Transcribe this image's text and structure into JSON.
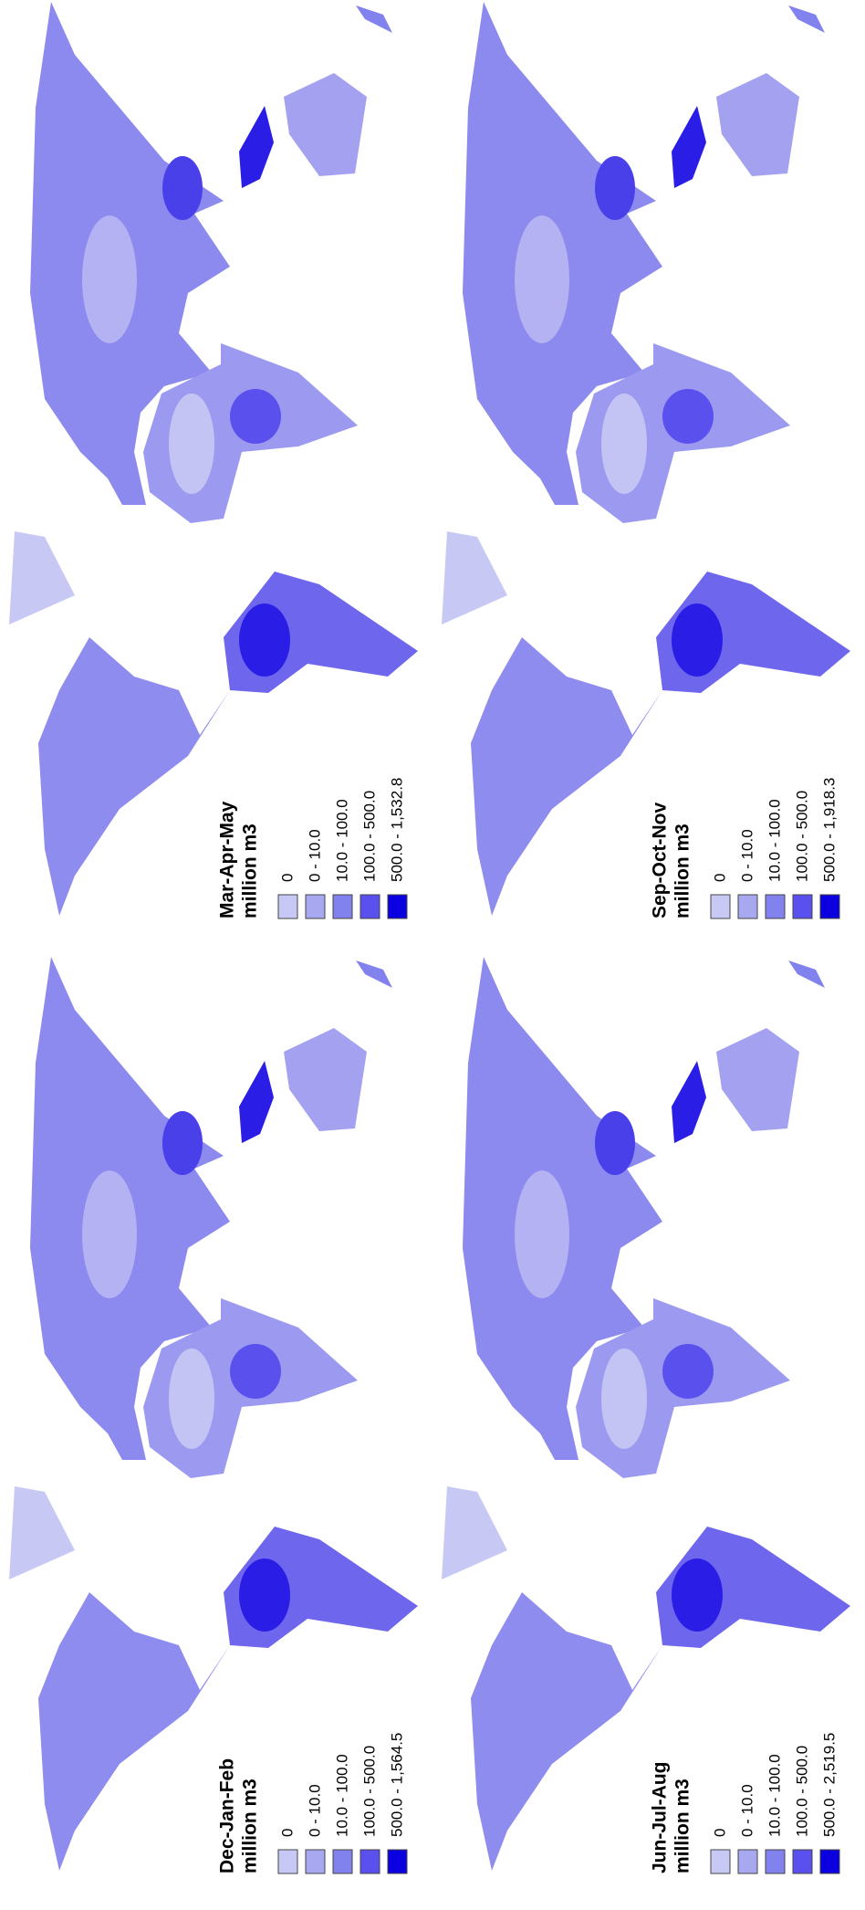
{
  "panels": [
    {
      "title": "Dec-Jan-Feb",
      "unit": "million m3",
      "legend": [
        {
          "label": "0",
          "color": "#c8c8f5"
        },
        {
          "label": "0 - 10.0",
          "color": "#a8a8f0"
        },
        {
          "label": "10.0 - 100.0",
          "color": "#8282ee"
        },
        {
          "label": "100.0 - 500.0",
          "color": "#5a50ee"
        },
        {
          "label": "500.0 - 1,564.5",
          "color": "#0a00e0"
        }
      ]
    },
    {
      "title": "Mar-Apr-May",
      "unit": "million m3",
      "legend": [
        {
          "label": "0",
          "color": "#c8c8f5"
        },
        {
          "label": "0 - 10.0",
          "color": "#a8a8f0"
        },
        {
          "label": "10.0 - 100.0",
          "color": "#8282ee"
        },
        {
          "label": "100.0 - 500.0",
          "color": "#5a50ee"
        },
        {
          "label": "500.0 - 1,532.8",
          "color": "#0a00e0"
        }
      ]
    },
    {
      "title": "Jun-Jul-Aug",
      "unit": "million m3",
      "legend": [
        {
          "label": "0",
          "color": "#c8c8f5"
        },
        {
          "label": "0 - 10.0",
          "color": "#a8a8f0"
        },
        {
          "label": "10.0 - 100.0",
          "color": "#8282ee"
        },
        {
          "label": "100.0 - 500.0",
          "color": "#5a50ee"
        },
        {
          "label": "500.0 - 2,519.5",
          "color": "#0a00e0"
        }
      ]
    },
    {
      "title": "Sep-Oct-Nov",
      "unit": "million m3",
      "legend": [
        {
          "label": "0",
          "color": "#c8c8f5"
        },
        {
          "label": "0 - 10.0",
          "color": "#a8a8f0"
        },
        {
          "label": "10.0 - 100.0",
          "color": "#8282ee"
        },
        {
          "label": "100.0 - 500.0",
          "color": "#5a50ee"
        },
        {
          "label": "500.0 - 1,918.3",
          "color": "#0a00e0"
        }
      ]
    }
  ]
}
